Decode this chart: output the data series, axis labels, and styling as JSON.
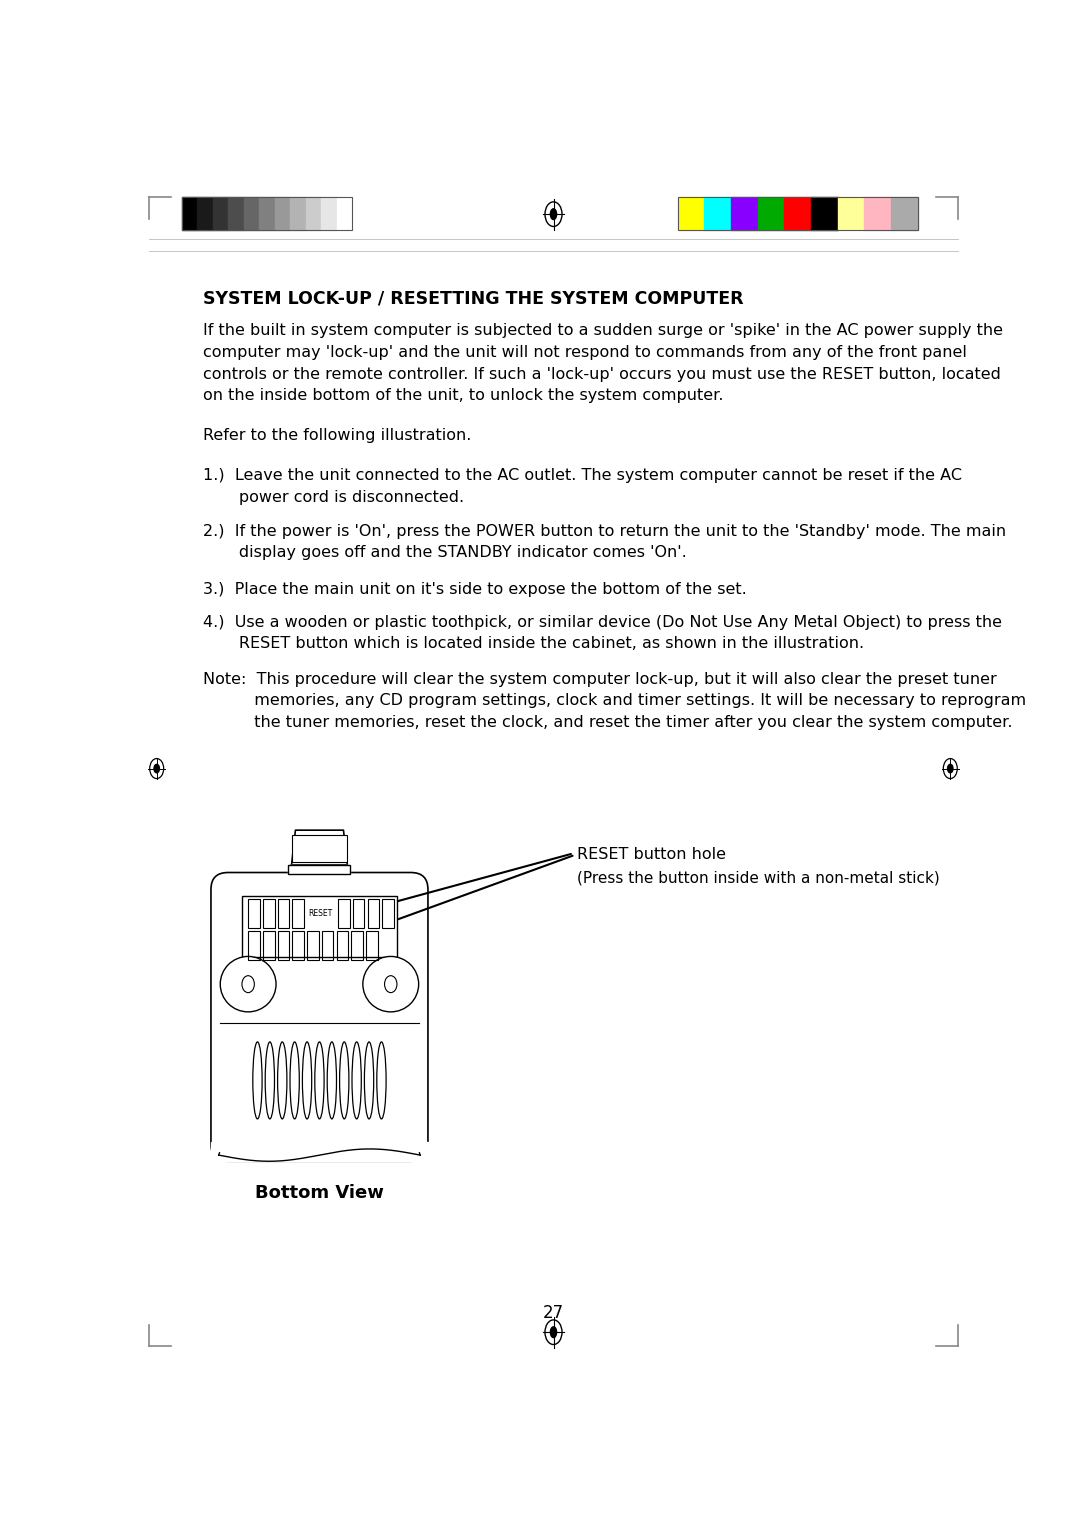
{
  "bg_color": "#ffffff",
  "title": "SYSTEM LOCK-UP / RESETTING THE SYSTEM COMPUTER",
  "para1": "If the built in system computer is subjected to a sudden surge or 'spike' in the AC power supply the\ncomputer may 'lock-up' and the unit will not respond to commands from any of the front panel\ncontrols or the remote controller. If such a 'lock-up' occurs you must use the RESET button, located\non the inside bottom of the unit, to unlock the system computer.",
  "para2": "Refer to the following illustration.",
  "item1": "1.)  Leave the unit connected to the AC outlet. The system computer cannot be reset if the AC\n       power cord is disconnected.",
  "item2": "2.)  If the power is 'On', press the POWER button to return the unit to the 'Standby' mode. The main\n       display goes off and the STANDBY indicator comes 'On'.",
  "item3": "3.)  Place the main unit on it's side to expose the bottom of the set.",
  "item4": "4.)  Use a wooden or plastic toothpick, or similar device (Do Not Use Any Metal Object) to press the\n       RESET button which is located inside the cabinet, as shown in the illustration.",
  "note": "Note:  This procedure will clear the system computer lock-up, but it will also clear the preset tuner\n          memories, any CD program settings, clock and timer settings. It will be necessary to reprogram\n          the tuner memories, reset the clock, and reset the timer after you clear the system computer.",
  "label1": "RESET button hole",
  "label2": "(Press the button inside with a non-metal stick)",
  "bottom_view": "Bottom View",
  "page_num": "27",
  "gray_colors": [
    "#000000",
    "#1a1a1a",
    "#333333",
    "#4d4d4d",
    "#666666",
    "#808080",
    "#999999",
    "#b3b3b3",
    "#cccccc",
    "#e6e6e6",
    "#ffffff"
  ],
  "color_bars": [
    "#ffff00",
    "#00ffff",
    "#8800ff",
    "#00aa00",
    "#ff0000",
    "#000000",
    "#ffff99",
    "#ffb6c1",
    "#aaaaaa"
  ],
  "text_color": "#000000",
  "body_fontsize": 11.5,
  "title_fontsize": 12.5
}
